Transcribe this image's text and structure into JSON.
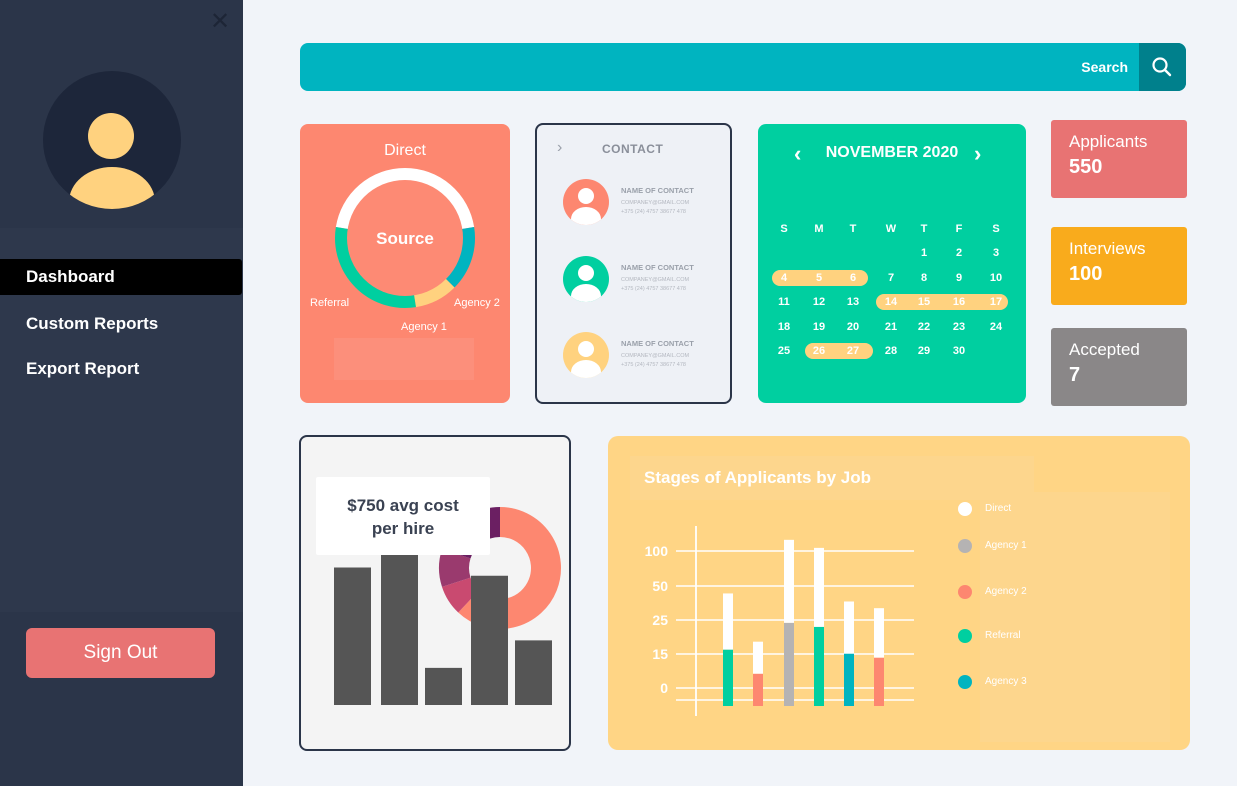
{
  "sidebar": {
    "close_icon": "close-icon",
    "nav": [
      {
        "label": "Dashboard",
        "active": true
      },
      {
        "label": "Custom Reports",
        "active": false
      },
      {
        "label": "Export Report",
        "active": false
      }
    ],
    "sign_out_label": "Sign Out"
  },
  "search": {
    "label": "Search",
    "icon": "search-icon"
  },
  "source_card": {
    "title": "Direct",
    "center_label": "Source",
    "labels": [
      "Referral",
      "Agency 2",
      "Agency 1"
    ]
  },
  "contact_card": {
    "title": "CONTACT",
    "contacts": [
      {
        "name": "NAME OF CONTACT",
        "email": "COMPANEY@GMAIL.COM",
        "phone": "+375 (24) 4757 38677 478",
        "color": "#fd8770"
      },
      {
        "name": "NAME OF CONTACT",
        "email": "COMPANEY@GMAIL.COM",
        "phone": "+375 (24) 4757 38677 478",
        "color": "#00cfa0"
      },
      {
        "name": "NAME OF CONTACT",
        "email": "COMPANEY@GMAIL.COM",
        "phone": "+375 (24) 4757 38677 478",
        "color": "#ffd27f"
      }
    ]
  },
  "calendar": {
    "month_label": "NOVEMBER 2020",
    "weekdays": [
      "S",
      "M",
      "T",
      "W",
      "T",
      "F",
      "S"
    ],
    "weeks": [
      [
        "",
        "",
        "",
        "",
        "1",
        "2",
        "3"
      ],
      [
        "4",
        "5",
        "6",
        "7",
        "8",
        "9",
        "10"
      ],
      [
        "11",
        "12",
        "13",
        "14",
        "15",
        "16",
        "17"
      ],
      [
        "18",
        "19",
        "20",
        "21",
        "22",
        "23",
        "24"
      ],
      [
        "25",
        "26",
        "27",
        "28",
        "29",
        "30",
        ""
      ]
    ],
    "highlight_color": "#ffd27f"
  },
  "stats": [
    {
      "label": "Applicants",
      "value": "550",
      "color": "#e87373"
    },
    {
      "label": "Interviews",
      "value": "100",
      "color": "#f9ab1c"
    },
    {
      "label": "Accepted",
      "value": "7",
      "color": "#8a8788"
    }
  ],
  "cost_card": {
    "line1": "$750 avg cost",
    "line2": "per hire"
  },
  "stages": {
    "title": "Stages of Applicants by Job",
    "legend": [
      {
        "name": "Direct",
        "color": "#ffffff"
      },
      {
        "name": "Agency 1",
        "color": "#b5b3b3"
      },
      {
        "name": "Agency 2",
        "color": "#fd8770"
      },
      {
        "name": "Referral",
        "color": "#00cfa0"
      },
      {
        "name": "Agency 3",
        "color": "#00b4c0"
      }
    ]
  },
  "chart_data": [
    {
      "type": "pie",
      "title": "Direct",
      "center_label": "Source",
      "slices": [
        {
          "label": "Direct",
          "value": 45,
          "color": "#ffffff"
        },
        {
          "label": "Agency 2",
          "value": 15,
          "color": "#00b4c0"
        },
        {
          "label": "Agency 1",
          "value": 10,
          "color": "#ffd27f"
        },
        {
          "label": "Referral",
          "value": 30,
          "color": "#00cfa0"
        }
      ]
    },
    {
      "type": "bar",
      "note": "$750 avg cost per hire",
      "values": [
        100,
        110,
        27,
        94,
        47
      ],
      "ylim": [
        0,
        120
      ],
      "bar_color": "#555555",
      "donut": [
        {
          "value": 62,
          "color": "#fd8770"
        },
        {
          "value": 8,
          "color": "#c94a70"
        },
        {
          "value": 10,
          "color": "#9a3a6e"
        },
        {
          "value": 20,
          "color": "#6b1f62"
        }
      ]
    },
    {
      "type": "bar",
      "title": "Stages of Applicants by Job",
      "yticks": [
        "100",
        "50",
        "25",
        "15",
        "0"
      ],
      "stacked": true,
      "bars": [
        {
          "base": 42,
          "total": 84,
          "base_color": "#00cfa0"
        },
        {
          "base": 24,
          "total": 48,
          "base_color": "#fd8770"
        },
        {
          "base": 62,
          "total": 124,
          "base_color": "#b5b3b3"
        },
        {
          "base": 59,
          "total": 118,
          "base_color": "#00cfa0"
        },
        {
          "base": 39,
          "total": 78,
          "base_color": "#00b4c0"
        },
        {
          "base": 36,
          "total": 73,
          "base_color": "#fd8770"
        }
      ],
      "top_color": "#ffffff",
      "ylim": [
        0,
        130
      ]
    }
  ]
}
